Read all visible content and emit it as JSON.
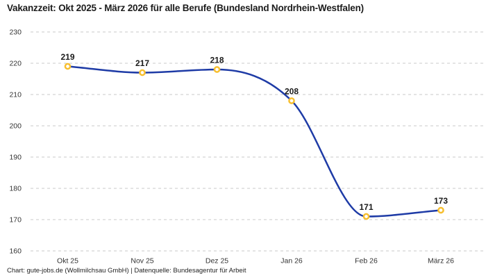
{
  "header": {
    "title": "Vakanzzeit: Okt 2025 - März 2026 für alle Berufe (Bundesland Nordrhein-Westfalen)"
  },
  "footer": {
    "credit": "Chart: gute-jobs.de (Wollmilchsau GmbH) | Datenquelle: Bundesagentur für Arbeit"
  },
  "chart_data": {
    "type": "line",
    "title": "Vakanzzeit: Okt 2025 - März 2026 für alle Berufe (Bundesland Nordrhein-Westfalen)",
    "categories": [
      "Okt 25",
      "Nov 25",
      "Dez 25",
      "Jan 26",
      "Feb 26",
      "März 26"
    ],
    "values": [
      219,
      217,
      218,
      208,
      171,
      173
    ],
    "point_labels": [
      "219",
      "217",
      "218",
      "208",
      "171",
      "173"
    ],
    "xlabel": "",
    "ylabel": "",
    "ylim": [
      160,
      230
    ],
    "yticks": [
      230,
      220,
      210,
      200,
      190,
      180,
      170,
      160
    ],
    "grid": "horizontal-dashed",
    "legend": "none",
    "curve": "monotone-smooth",
    "colors": {
      "line": "#1e3ba6",
      "marker_ring": "#f7bf2f",
      "marker_fill": "#ffffff",
      "gridline": "#c9c9c9",
      "value_label": "#1a1a1a",
      "tick_label": "#333333",
      "title": "#1c1c1c",
      "credit": "#1f1f1f",
      "background": "#ffffff"
    }
  }
}
